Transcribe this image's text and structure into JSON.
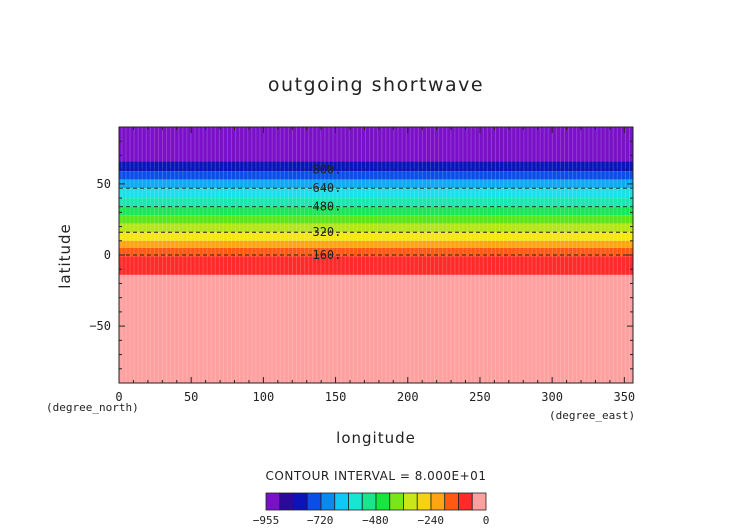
{
  "chart_data": {
    "type": "heatmap",
    "title": "outgoing shortwave",
    "xlabel": "longitude",
    "ylabel": "latitude",
    "x_unit": "(degree_east)",
    "y_unit": "(degree_north)",
    "xlim": [
      0,
      356
    ],
    "ylim": [
      -90,
      90
    ],
    "x_ticks": [
      0,
      50,
      100,
      150,
      200,
      250,
      300,
      350
    ],
    "y_ticks": [
      50,
      0,
      -50
    ],
    "contour_interval_text": "CONTOUR INTERVAL = 8.000E+01",
    "bands": [
      {
        "lat_top": 90,
        "lat_bottom": 66,
        "color": "#7a10c8"
      },
      {
        "lat_top": 66,
        "lat_bottom": 59,
        "color": "#0b14b8"
      },
      {
        "lat_top": 59,
        "lat_bottom": 53,
        "color": "#0a4ee8"
      },
      {
        "lat_top": 53,
        "lat_bottom": 47,
        "color": "#0fa8f5"
      },
      {
        "lat_top": 47,
        "lat_bottom": 40,
        "color": "#19e1e6"
      },
      {
        "lat_top": 40,
        "lat_bottom": 34,
        "color": "#19e6b0"
      },
      {
        "lat_top": 34,
        "lat_bottom": 28,
        "color": "#19e65a"
      },
      {
        "lat_top": 28,
        "lat_bottom": 22,
        "color": "#5ae619"
      },
      {
        "lat_top": 22,
        "lat_bottom": 16,
        "color": "#b4e619"
      },
      {
        "lat_top": 16,
        "lat_bottom": 10,
        "color": "#f5e614"
      },
      {
        "lat_top": 10,
        "lat_bottom": 5,
        "color": "#ffa514"
      },
      {
        "lat_top": 5,
        "lat_bottom": -1,
        "color": "#ff5a14"
      },
      {
        "lat_top": -1,
        "lat_bottom": -14,
        "color": "#ff2a2a"
      },
      {
        "lat_top": -14,
        "lat_bottom": -90,
        "color": "#ffa0a0"
      }
    ],
    "contour_lines": [
      {
        "lat": 60,
        "label": "800."
      },
      {
        "lat": 47,
        "label": "640."
      },
      {
        "lat": 34,
        "label": "480."
      },
      {
        "lat": 16,
        "label": "320."
      },
      {
        "lat": 0,
        "label": "160."
      }
    ],
    "contour_label_lon": 134,
    "colorbar": {
      "colors": [
        "#7a10c8",
        "#2a0a9a",
        "#0b14b8",
        "#0a4ee8",
        "#0a8af0",
        "#0fc8f5",
        "#19e6d2",
        "#19e68c",
        "#19e63c",
        "#78e619",
        "#c8e619",
        "#f5d214",
        "#ffa514",
        "#ff5a14",
        "#ff2a2a",
        "#ffa0a0"
      ],
      "tick_values": [
        -955,
        -720,
        -480,
        -240,
        0
      ],
      "tick_labels": [
        "−955",
        "−720",
        "−480",
        "−240",
        "0"
      ],
      "range": [
        -955,
        0
      ]
    }
  }
}
